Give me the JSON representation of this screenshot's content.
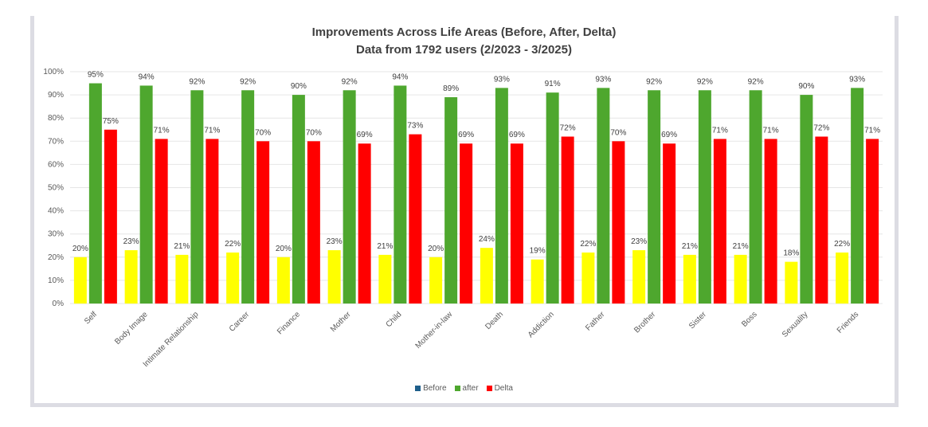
{
  "chart_data": {
    "type": "bar",
    "title": "Improvements Across Life Areas (Before, After, Delta)",
    "subtitle": "Data from 1792 users (2/2023 - 3/2025)",
    "categories": [
      "Self",
      "Body Image",
      "Intimate Relationship",
      "Career",
      "Finance",
      "Mother",
      "Child",
      "Mother-in-law",
      "Death",
      "Addiction",
      "Father",
      "Brother",
      "Sister",
      "Boss",
      "Sexuality",
      "Friends"
    ],
    "series": [
      {
        "name": "Before",
        "color": "#ffff00",
        "legend_color": "#1f5f8b",
        "values": [
          20,
          23,
          21,
          22,
          20,
          23,
          21,
          20,
          24,
          19,
          22,
          23,
          21,
          21,
          18,
          22
        ]
      },
      {
        "name": "after",
        "color": "#4ea72e",
        "legend_color": "#4ea72e",
        "values": [
          95,
          94,
          92,
          92,
          90,
          92,
          94,
          89,
          93,
          91,
          93,
          92,
          92,
          92,
          90,
          93
        ]
      },
      {
        "name": "Delta",
        "color": "#ff0000",
        "legend_color": "#ff0000",
        "values": [
          75,
          71,
          71,
          70,
          70,
          69,
          73,
          69,
          69,
          72,
          70,
          69,
          71,
          71,
          72,
          71
        ]
      }
    ],
    "y_ticks": [
      "0%",
      "10%",
      "20%",
      "30%",
      "40%",
      "50%",
      "60%",
      "70%",
      "80%",
      "90%",
      "100%"
    ],
    "ylim": [
      0,
      100
    ],
    "grid": true,
    "legend_position": "bottom",
    "xlabel": "",
    "ylabel": ""
  }
}
